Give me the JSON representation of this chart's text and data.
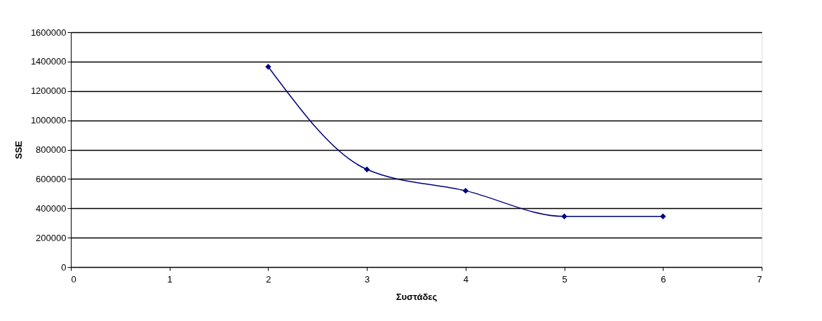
{
  "chart_data": {
    "type": "line",
    "xlabel": "Συστάδες",
    "ylabel": "SSE",
    "x": [
      2,
      3,
      4,
      5,
      6
    ],
    "series": [
      {
        "color": "#000080",
        "values": [
          1365000,
          665000,
          520000,
          345000,
          345000
        ]
      }
    ],
    "xlim": [
      0,
      7
    ],
    "xticks": [
      0,
      1,
      2,
      3,
      4,
      5,
      6,
      7
    ],
    "ylim": [
      0,
      1600000
    ],
    "yticks": [
      0,
      200000,
      400000,
      600000,
      800000,
      1000000,
      1200000,
      1400000,
      1600000
    ],
    "grid": "y",
    "marker": "diamond",
    "line_style": "solid"
  }
}
